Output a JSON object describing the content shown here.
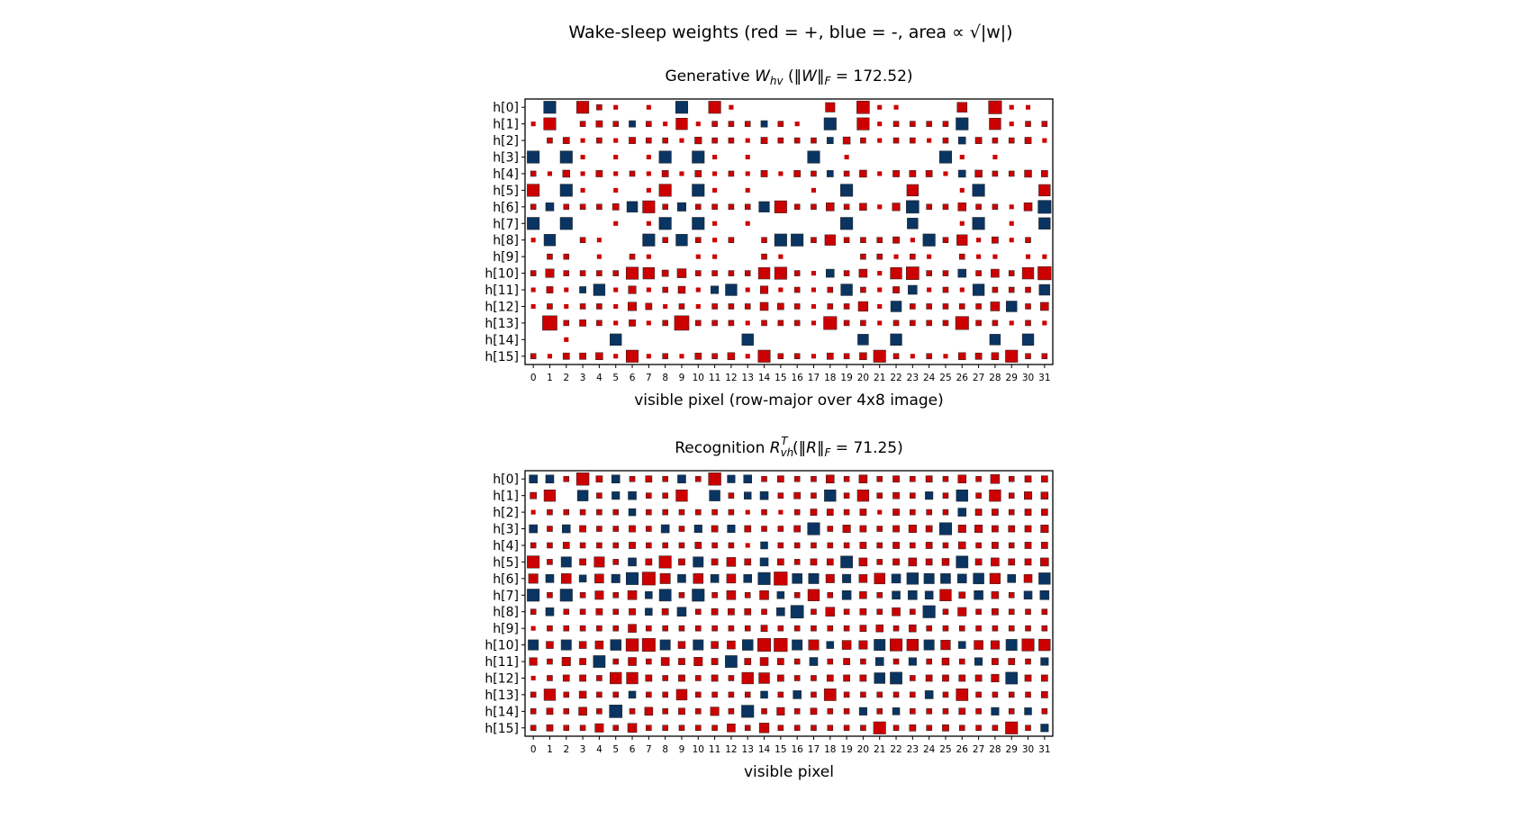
{
  "figure": {
    "title_prefix": "Wake-sleep weights (red = +, blue = -, area ",
    "title_math": "∝ √|w|",
    "title_suffix": ")"
  },
  "colors": {
    "positive": "#cc0000",
    "negative": "#0a3461",
    "frame": "#000000"
  },
  "chart_data": [
    {
      "type": "heatmap",
      "name": "generative",
      "title": {
        "prefix": "Generative ",
        "sym": "W",
        "sub": "hv",
        "sup": "",
        "norm_sym": "W",
        "norm_value": "172.52"
      },
      "xlabel": "visible pixel (row-major over 4x8 image)",
      "ylabel": "",
      "rows": [
        "h[0]",
        "h[1]",
        "h[2]",
        "h[3]",
        "h[4]",
        "h[5]",
        "h[6]",
        "h[7]",
        "h[8]",
        "h[9]",
        "h[10]",
        "h[11]",
        "h[12]",
        "h[13]",
        "h[14]",
        "h[15]"
      ],
      "columns": [
        "0",
        "1",
        "2",
        "3",
        "4",
        "5",
        "6",
        "7",
        "8",
        "9",
        "10",
        "11",
        "12",
        "13",
        "14",
        "15",
        "16",
        "17",
        "18",
        "19",
        "20",
        "21",
        "22",
        "23",
        "24",
        "25",
        "26",
        "27",
        "28",
        "29",
        "30",
        "31"
      ],
      "value_scale": "signed; marker area proportional to sqrt(|w|), max |w| = 1",
      "values": [
        [
          0,
          -0.5,
          0,
          0.5,
          0.02,
          0.01,
          0,
          0.01,
          0,
          -0.5,
          0,
          0.5,
          0.01,
          0,
          0,
          0,
          0,
          0,
          0.18,
          0,
          0.58,
          0.01,
          0.01,
          0,
          0,
          0,
          0.22,
          0,
          0.66,
          0.01,
          0.01,
          0
        ],
        [
          0.01,
          0.5,
          0,
          0.02,
          0.04,
          0.02,
          -0.04,
          0.02,
          0.01,
          0.4,
          0.01,
          0.02,
          0.02,
          0.02,
          -0.04,
          0.02,
          0.01,
          0,
          -0.5,
          0,
          0.5,
          0.01,
          0.02,
          0.02,
          0.02,
          0.02,
          -0.5,
          0,
          0.4,
          0.01,
          0.02,
          0.02
        ],
        [
          0,
          0.02,
          0.04,
          0.01,
          0.02,
          0.01,
          0.04,
          0.02,
          0.02,
          0.01,
          0.05,
          0.02,
          0.02,
          0.01,
          0.04,
          0.02,
          0.02,
          0.02,
          -0.04,
          0.06,
          0.02,
          0.01,
          0.02,
          0.02,
          0.01,
          0.02,
          -0.06,
          0.04,
          0.02,
          0.02,
          0.04,
          0.01
        ],
        [
          -0.5,
          0,
          -0.5,
          0.01,
          0,
          0.01,
          0,
          0.01,
          -0.5,
          0,
          -0.5,
          0.01,
          0,
          0.01,
          0,
          0,
          0,
          -0.5,
          0,
          0.01,
          0,
          0,
          0,
          0,
          0,
          -0.5,
          0.01,
          0,
          0.01,
          0,
          0,
          0
        ],
        [
          0.02,
          0.01,
          0.06,
          0.01,
          0.04,
          0.01,
          0.02,
          0.01,
          0.04,
          0.01,
          0.04,
          0.01,
          0.02,
          0.01,
          0.04,
          0.01,
          0.04,
          0.02,
          -0.04,
          0.02,
          0.06,
          0.01,
          0.04,
          0.04,
          0.04,
          0.01,
          -0.06,
          0.06,
          0.02,
          0.02,
          0.06,
          0.04
        ],
        [
          0.5,
          0,
          -0.5,
          0.01,
          0,
          0.01,
          0,
          0.01,
          0.5,
          0,
          -0.5,
          0.01,
          0,
          0.01,
          0,
          0,
          0,
          0.01,
          0,
          -0.5,
          0,
          0,
          0,
          0.4,
          0,
          0,
          0.01,
          -0.5,
          0,
          0,
          0,
          0.4
        ],
        [
          0.02,
          -0.1,
          0.02,
          0.02,
          0.02,
          0.04,
          -0.3,
          0.5,
          0.02,
          -0.12,
          0.02,
          0.02,
          0.02,
          0.02,
          -0.28,
          0.5,
          0.02,
          0.02,
          0.1,
          0.02,
          0.06,
          0.01,
          0.08,
          -0.58,
          0.02,
          0.02,
          0.1,
          0.02,
          0.02,
          0.01,
          0.1,
          -0.65
        ],
        [
          -0.5,
          0,
          -0.5,
          0,
          0,
          0.01,
          0,
          0.01,
          -0.5,
          0,
          -0.5,
          0.01,
          0,
          0.01,
          0,
          0,
          0,
          0,
          0,
          -0.5,
          0,
          0,
          0,
          -0.3,
          0,
          0,
          0.01,
          -0.5,
          0,
          0.01,
          0,
          -0.4
        ],
        [
          0.01,
          -0.4,
          0,
          0.02,
          0.01,
          0,
          0,
          -0.5,
          0.02,
          -0.4,
          0.02,
          0.01,
          0.02,
          0,
          0.02,
          -0.5,
          -0.5,
          0.02,
          0.28,
          0.02,
          0.02,
          0.02,
          0.04,
          0.01,
          -0.5,
          0.02,
          0.28,
          0.01,
          0.04,
          0.01,
          0.02,
          0
        ],
        [
          0,
          0.02,
          0.02,
          0,
          0.01,
          0,
          0.02,
          0.01,
          0,
          0,
          0.01,
          0.01,
          0,
          0,
          0.02,
          0.01,
          0,
          0,
          0,
          0,
          0.02,
          0.02,
          0.01,
          0.02,
          0.01,
          0,
          0.02,
          0.01,
          0.01,
          0,
          0.01,
          0.01
        ],
        [
          0.02,
          0.12,
          0.02,
          0.02,
          0.02,
          0.02,
          0.5,
          0.4,
          0.04,
          0.15,
          0.02,
          0.02,
          0.02,
          0.02,
          0.4,
          0.5,
          0.02,
          0.01,
          -0.1,
          0.02,
          0.1,
          0.01,
          0.4,
          0.6,
          0.02,
          0.02,
          -0.1,
          0.02,
          0.1,
          0.02,
          0.4,
          0.7
        ],
        [
          0.01,
          0.04,
          0.01,
          -0.04,
          -0.4,
          0.01,
          0.08,
          0.01,
          0.02,
          0.06,
          0.01,
          -0.08,
          -0.4,
          0.01,
          0.08,
          0.01,
          0.02,
          0.01,
          0.02,
          -0.4,
          0.02,
          0.01,
          0.04,
          -0.15,
          0.01,
          0.02,
          0.01,
          -0.4,
          0.02,
          0.02,
          0.02,
          -0.3
        ],
        [
          0.01,
          0.02,
          0.01,
          0.02,
          0.02,
          0.01,
          0.12,
          0.04,
          0.01,
          0.02,
          0.01,
          0.02,
          0.02,
          0.02,
          0.1,
          0.04,
          0.02,
          0.01,
          0.02,
          0.02,
          0.2,
          0.01,
          -0.3,
          0.02,
          0.02,
          0.02,
          0.02,
          0.02,
          0.15,
          -0.3,
          0.02,
          0.1
        ],
        [
          0,
          1.0,
          0.02,
          0.04,
          0.02,
          0.01,
          0.04,
          0.01,
          0.02,
          1.0,
          0.02,
          0.02,
          0.02,
          0.01,
          0.02,
          0.02,
          0.02,
          0.01,
          0.66,
          0.02,
          0.02,
          0.01,
          0.02,
          0.02,
          0.02,
          0.02,
          0.66,
          0.02,
          0.02,
          0.01,
          0.02,
          0.01
        ],
        [
          0,
          0,
          0.01,
          0,
          0,
          -0.4,
          0,
          0,
          0,
          0,
          0,
          0,
          0,
          -0.4,
          0,
          0,
          0,
          0,
          0,
          0,
          -0.3,
          0,
          -0.4,
          0,
          0,
          0,
          0,
          0,
          -0.3,
          0,
          -0.4,
          0
        ],
        [
          0.02,
          0.01,
          0.04,
          0.04,
          0.06,
          0.01,
          0.5,
          0.01,
          0.02,
          0.01,
          0.04,
          0.02,
          0.06,
          0.01,
          0.5,
          0.02,
          0.02,
          0.01,
          0.04,
          0.02,
          0.06,
          0.5,
          0.02,
          0.01,
          0.02,
          0.01,
          0.06,
          0.04,
          0.06,
          0.5,
          0.02,
          0.02
        ]
      ]
    },
    {
      "type": "heatmap",
      "name": "recognition",
      "title": {
        "prefix": "Recognition ",
        "sym": "R",
        "sub": "vh",
        "sup": "T",
        "norm_sym": "R",
        "norm_value": "71.25"
      },
      "xlabel": "visible pixel",
      "ylabel": "",
      "rows": [
        "h[0]",
        "h[1]",
        "h[2]",
        "h[3]",
        "h[4]",
        "h[5]",
        "h[6]",
        "h[7]",
        "h[8]",
        "h[9]",
        "h[10]",
        "h[11]",
        "h[12]",
        "h[13]",
        "h[14]",
        "h[15]"
      ],
      "columns": [
        "0",
        "1",
        "2",
        "3",
        "4",
        "5",
        "6",
        "7",
        "8",
        "9",
        "10",
        "11",
        "12",
        "13",
        "14",
        "15",
        "16",
        "17",
        "18",
        "19",
        "20",
        "21",
        "22",
        "23",
        "24",
        "25",
        "26",
        "27",
        "28",
        "29",
        "30",
        "31"
      ],
      "value_scale": "signed; marker area proportional to sqrt(|w|), max |w| = 1",
      "values": [
        [
          -0.1,
          -0.1,
          0.02,
          0.55,
          0.04,
          -0.1,
          0.02,
          0.04,
          0.02,
          -0.1,
          0.02,
          0.55,
          -0.08,
          -0.1,
          0.02,
          0.04,
          0.02,
          0.02,
          0.1,
          0.02,
          0.1,
          0.02,
          0.04,
          0.02,
          0.04,
          0.02,
          0.1,
          0.02,
          0.15,
          0.02,
          0.04,
          0.04
        ],
        [
          0.04,
          0.4,
          0,
          -0.3,
          0.02,
          -0.08,
          -0.1,
          0.02,
          0.02,
          0.4,
          0,
          -0.3,
          0.02,
          -0.06,
          -0.1,
          0.02,
          0.04,
          0.02,
          -0.4,
          0.02,
          0.4,
          0.02,
          0.04,
          0.02,
          -0.08,
          0.02,
          -0.4,
          0.02,
          0.4,
          0.02,
          0.08,
          0.06
        ],
        [
          0.01,
          0.02,
          0.02,
          0.02,
          0.02,
          0.02,
          -0.06,
          0.02,
          0.02,
          0.02,
          0.02,
          0.02,
          0.02,
          0.01,
          0.02,
          0.01,
          0.02,
          0.04,
          0.04,
          0.02,
          0.04,
          0.01,
          0.04,
          0.02,
          0.02,
          0.02,
          -0.1,
          0.04,
          0.04,
          0.02,
          0.04,
          0.04
        ],
        [
          -0.1,
          0.02,
          -0.1,
          0.04,
          0.02,
          0.02,
          0.04,
          0.02,
          -0.1,
          0.02,
          -0.08,
          0.04,
          -0.08,
          0.04,
          0.02,
          0.02,
          0.04,
          -0.5,
          0.02,
          0.08,
          0.04,
          0.02,
          0.04,
          0.08,
          0.04,
          -0.5,
          0.08,
          0.08,
          0.04,
          0.04,
          0.04,
          0.08
        ],
        [
          0.02,
          0.02,
          0.04,
          0.02,
          0.02,
          0.02,
          0.04,
          0.02,
          0.02,
          0.02,
          0.04,
          0.02,
          0.02,
          0.01,
          -0.06,
          0.02,
          0.02,
          0.02,
          0.02,
          0.02,
          0.04,
          0.02,
          0.04,
          0.02,
          0.04,
          0.02,
          0.06,
          0.02,
          0.04,
          0.02,
          0.04,
          0.04
        ],
        [
          0.5,
          0.02,
          -0.25,
          0.04,
          0.25,
          0.02,
          -0.1,
          0.04,
          0.5,
          0.04,
          -0.25,
          0.04,
          0.15,
          0.04,
          -0.1,
          0.04,
          0.02,
          0.04,
          0.04,
          -0.45,
          0.1,
          0.02,
          0.04,
          0.1,
          0.04,
          0.06,
          -0.45,
          0.04,
          0.1,
          0.04,
          0.04,
          0.1
        ],
        [
          0.18,
          -0.1,
          0.22,
          -0.06,
          0.15,
          -0.12,
          -0.5,
          0.65,
          0.25,
          -0.1,
          0.22,
          -0.1,
          0.15,
          -0.1,
          -0.5,
          0.7,
          -0.22,
          -0.25,
          0.12,
          -0.12,
          0.1,
          0.3,
          -0.15,
          -0.4,
          -0.25,
          -0.22,
          -0.15,
          -0.3,
          0.28,
          -0.1,
          0.1,
          -0.4
        ],
        [
          -0.5,
          0.02,
          -0.5,
          0.02,
          0.12,
          0.02,
          0.15,
          -0.06,
          -0.45,
          0.02,
          -0.5,
          0.02,
          0.15,
          0.02,
          0.15,
          -0.06,
          0.02,
          0.4,
          0.02,
          -0.15,
          0.06,
          0.02,
          -0.1,
          -0.15,
          -0.1,
          0.4,
          0.04,
          -0.15,
          0.06,
          0.02,
          -0.1,
          -0.15
        ],
        [
          0.02,
          -0.1,
          0.02,
          0.02,
          0.04,
          0.02,
          0.04,
          -0.06,
          0.04,
          -0.15,
          0.02,
          0.04,
          0.04,
          0.04,
          0.02,
          -0.1,
          -0.6,
          0.02,
          0.15,
          0.02,
          0.04,
          0.02,
          0.1,
          0.02,
          -0.5,
          0.02,
          0.12,
          0.02,
          0.04,
          0.02,
          0.02,
          0.02
        ],
        [
          0.01,
          0.02,
          0.02,
          0.02,
          0.02,
          0.02,
          0.1,
          0.02,
          0.02,
          0.02,
          0.02,
          0.02,
          0.02,
          0.02,
          0.04,
          0.02,
          0.02,
          0.02,
          0.02,
          0.02,
          0.04,
          0.06,
          0.02,
          0.06,
          0.02,
          0.02,
          0.02,
          0.02,
          0.02,
          0.02,
          0.02,
          0.02
        ],
        [
          -0.25,
          0.06,
          -0.25,
          0.06,
          0.1,
          -0.3,
          0.55,
          0.65,
          -0.25,
          0.06,
          -0.25,
          0.06,
          0.1,
          -0.3,
          0.65,
          0.7,
          -0.25,
          0.25,
          -0.06,
          0.15,
          0.12,
          -0.35,
          0.5,
          0.4,
          -0.25,
          0.2,
          -0.06,
          0.15,
          0.12,
          -0.35,
          0.5,
          0.4
        ],
        [
          0.08,
          0.02,
          0.12,
          0.04,
          -0.45,
          0.02,
          0.1,
          0.02,
          0.1,
          0.04,
          0.12,
          0.04,
          -0.45,
          0.04,
          0.1,
          0.04,
          0.02,
          -0.1,
          0.02,
          0.04,
          0.02,
          -0.1,
          0.02,
          -0.08,
          0.02,
          0.06,
          0.02,
          -0.08,
          0.04,
          0.04,
          0.02,
          -0.08
        ],
        [
          0.01,
          0.02,
          0.04,
          0.04,
          0.02,
          0.4,
          0.4,
          0.04,
          0.02,
          0.04,
          0.02,
          0.04,
          0.02,
          0.4,
          0.3,
          0.04,
          0.02,
          0.02,
          0.04,
          0.04,
          0.04,
          -0.3,
          -0.45,
          0.02,
          0.04,
          0.04,
          0.04,
          0.04,
          0.08,
          -0.45,
          0.04,
          0.04
        ],
        [
          0.02,
          0.4,
          0.02,
          0.06,
          0.02,
          0.02,
          -0.06,
          0.02,
          0.02,
          0.3,
          0.02,
          0.02,
          0.02,
          0.02,
          -0.06,
          0.02,
          -0.1,
          0.02,
          0.45,
          0.02,
          0.02,
          0.02,
          0.02,
          0.02,
          -0.1,
          0.02,
          0.45,
          0.02,
          0.02,
          0.02,
          0.02,
          0.04
        ],
        [
          0.02,
          0.04,
          0.02,
          0.1,
          0.02,
          -0.6,
          0.02,
          0.1,
          0.02,
          0.04,
          0.02,
          0.12,
          0.02,
          -0.5,
          0.02,
          0.08,
          0.02,
          0.04,
          0.02,
          0.02,
          -0.08,
          0.02,
          -0.06,
          0.02,
          0.02,
          0.02,
          0.04,
          0.02,
          -0.08,
          0.02,
          -0.06,
          0.02
        ],
        [
          0.02,
          0.04,
          0.02,
          0.02,
          0.12,
          0.02,
          0.15,
          0.02,
          0.02,
          0.02,
          0.02,
          0.02,
          0.1,
          0.02,
          0.2,
          0.02,
          0.02,
          0.02,
          0.02,
          0.02,
          0.02,
          0.5,
          0.02,
          0.04,
          0.02,
          0.04,
          0.02,
          0.02,
          0.02,
          0.5,
          0.02,
          -0.08
        ]
      ]
    }
  ]
}
